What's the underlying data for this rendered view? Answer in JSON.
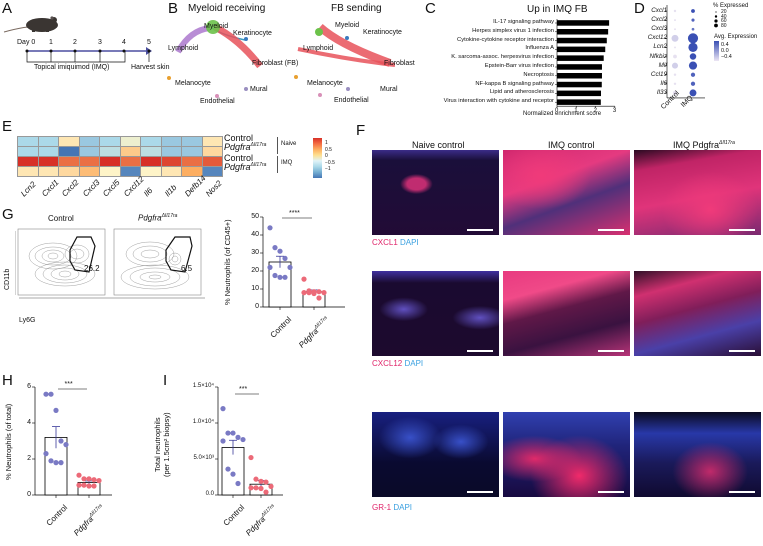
{
  "panels": {
    "A": {
      "label": "A",
      "day_labels": [
        "Day 0",
        "1",
        "2",
        "3",
        "4",
        "5"
      ],
      "treatment": "Topical imiquimod (IMQ)",
      "harvest": "Harvest skin",
      "arrow_color": "#4b4fa0"
    },
    "B": {
      "label": "B",
      "left_title": "Myeloid receiving",
      "right_title": "FB sending",
      "nodes_left": [
        "Myeloid",
        "Keratinocyte",
        "Lymphoid",
        "Fibroblast (FB)",
        "Melanocyte",
        "Mural",
        "Endothelial"
      ],
      "nodes_right": [
        "Myeloid",
        "Keratinocyte",
        "Lymphoid",
        "Fibroblast",
        "Melanocyte",
        "Mural",
        "Endothelial"
      ],
      "colors": {
        "myeloid": "#6cc24a",
        "keratinocyte": "#3a7bbf",
        "lymphoid": "#b07fd0",
        "fibroblast": "#e8525a",
        "melanocyte": "#e8a030",
        "mural": "#9a8fc0",
        "endothelial": "#d890b8"
      }
    },
    "C": {
      "label": "C"
    },
    "D": {
      "label": "D",
      "legend_size_title": "% Expressed",
      "legend_sizes": [
        "20",
        "40",
        "60",
        "80"
      ],
      "legend_color_title": "Avg. Expression",
      "legend_colors": [
        "0.4",
        "0.0",
        "−0.4"
      ]
    },
    "E": {
      "label": "E",
      "row_labels": [
        "Control",
        "Pdgfra",
        "Control",
        "Pdgfra"
      ],
      "row_sup": "ΔIl17ra",
      "group_labels": [
        "Naive",
        "IMQ"
      ],
      "colorbar_ticks": [
        "1",
        "0.5",
        "0",
        "−0.5",
        "−1"
      ]
    },
    "F": {
      "label": "F",
      "col_titles": [
        "Naive control",
        "IMQ control",
        "IMQ Pdgfra"
      ],
      "col3_sup": "ΔIl17ra",
      "rows": [
        {
          "stain": "CXCL1",
          "counter": "DAPI"
        },
        {
          "stain": "CXCL12",
          "counter": "DAPI"
        },
        {
          "stain": "GR-1",
          "counter": "DAPI"
        }
      ],
      "stain_color": "#e0246a",
      "dapi_color": "#3aa0e0"
    },
    "G": {
      "label": "G",
      "flow_titles": [
        "Control",
        "Pdgfra"
      ],
      "flow_sup": "ΔIl17ra",
      "gate_values": [
        "26.2",
        "6.5"
      ],
      "x_axis": "Ly6G",
      "y_axis": "CD11b",
      "significance": "****"
    },
    "H": {
      "label": "H",
      "significance": "***"
    },
    "I": {
      "label": "I",
      "significance": "***"
    }
  },
  "chart_data": [
    {
      "id": "C",
      "type": "bar",
      "orientation": "horizontal",
      "title": "Up in IMQ FB",
      "xlabel": "Normalized enrichment score",
      "xlim": [
        0,
        3
      ],
      "xticks": [
        "0",
        "1",
        "2",
        "3"
      ],
      "categories": [
        "IL-17 signaling pathway",
        "Herpes simplex virus 1 infection",
        "Cytokine-cytokine receptor interaction",
        "Influenza A",
        "K. sarcoma-assoc. herpesvirus infection",
        "Epstein-Barr virus infection",
        "Necroptosis",
        "NF-kappa B signaling pathway",
        "Lipid and atherosclerosis",
        "Virus interaction with cytokine and receptor"
      ],
      "values": [
        2.7,
        2.65,
        2.58,
        2.5,
        2.42,
        2.33,
        2.33,
        2.32,
        2.28,
        2.27
      ]
    },
    {
      "id": "D",
      "type": "scatter",
      "subtype": "dotplot",
      "genes": [
        "Cxcl1",
        "Cxcl2",
        "Cxcl3",
        "Cxcl12",
        "Lcn2",
        "Nfkbiz",
        "Mif",
        "Ccl19",
        "Il6",
        "Il33"
      ],
      "groups": [
        "Control",
        "IMQ"
      ],
      "pct_expressed": {
        "Control": [
          5,
          3,
          3,
          40,
          3,
          12,
          30,
          5,
          5,
          15
        ],
        "IMQ": [
          12,
          8,
          6,
          85,
          70,
          35,
          55,
          15,
          15,
          40
        ]
      },
      "avg_expression": {
        "Control": [
          -0.4,
          -0.4,
          -0.4,
          -0.3,
          -0.4,
          -0.4,
          -0.3,
          -0.4,
          -0.4,
          -0.4
        ],
        "IMQ": [
          0.4,
          0.3,
          0.2,
          0.4,
          0.4,
          0.4,
          0.4,
          0.3,
          0.3,
          0.4
        ]
      }
    },
    {
      "id": "E",
      "type": "heatmap",
      "columns": [
        "Lcn2",
        "Cxcl1",
        "Cxcl2",
        "Cxcl3",
        "Cxcl5",
        "Cxcl12",
        "Il6",
        "Il1b",
        "Defb14",
        "Nos2"
      ],
      "rows": [
        "Naive Control",
        "Naive PdgfraΔIl17ra",
        "IMQ Control",
        "IMQ PdgfraΔIl17ra"
      ],
      "values": [
        [
          -0.5,
          -0.5,
          0.1,
          -0.6,
          -0.5,
          -0.1,
          -0.5,
          -0.6,
          -0.6,
          0.1
        ],
        [
          -0.5,
          -0.5,
          -1.1,
          -0.6,
          -0.4,
          0.3,
          -0.4,
          -0.6,
          -0.6,
          0.2
        ],
        [
          1.1,
          1.1,
          0.8,
          0.8,
          1.1,
          0.8,
          1.1,
          1.0,
          0.8,
          0.9
        ],
        [
          0.1,
          0.1,
          0.2,
          0.4,
          0.0,
          -1.0,
          0.0,
          0.1,
          0.5,
          -1.0
        ]
      ],
      "colorbar": {
        "min": -1,
        "max": 1
      }
    },
    {
      "id": "G",
      "type": "bar",
      "ylabel": "% Neutrophils (of CD45+)",
      "ylim": [
        0,
        50
      ],
      "yticks": [
        "0",
        "10",
        "20",
        "30",
        "40",
        "50"
      ],
      "categories": [
        "Control",
        "PdgfraΔIl17ra"
      ],
      "values": [
        25,
        8.5
      ],
      "sem": [
        3.2,
        1.0
      ],
      "points": {
        "Control": [
          44,
          33,
          31,
          27,
          22,
          22,
          17.5,
          16.5,
          16.5
        ],
        "PdgfraΔIl17ra": [
          15.5,
          9,
          8.5,
          8.5,
          8,
          8,
          8,
          7.5,
          5
        ]
      },
      "significance": "****"
    },
    {
      "id": "H",
      "type": "bar",
      "ylabel": "% Neutrophils (of total)",
      "ylim": [
        0,
        6
      ],
      "yticks": [
        "0",
        "2",
        "4",
        "6"
      ],
      "categories": [
        "Control",
        "PdgfraΔIl17ra"
      ],
      "values": [
        3.2,
        0.7
      ],
      "sem": [
        0.6,
        0.08
      ],
      "points": {
        "Control": [
          5.6,
          5.6,
          4.7,
          3.0,
          2.8,
          2.3,
          1.9,
          1.8,
          1.8
        ],
        "PdgfraΔIl17ra": [
          1.1,
          0.9,
          0.9,
          0.85,
          0.8,
          0.55,
          0.55,
          0.5,
          0.5
        ]
      },
      "significance": "***"
    },
    {
      "id": "I",
      "type": "bar",
      "ylabel": "Total neutrophils (per 1.5cm² biopsy)",
      "ylim": [
        0,
        15000
      ],
      "yticks": [
        "0.0",
        "5.0×10³",
        "1.0×10⁴",
        "1.5×10⁴"
      ],
      "categories": [
        "Control",
        "PdgfraΔIl17ra"
      ],
      "values": [
        6600,
        1500
      ],
      "sem": [
        1000,
        500
      ],
      "points": {
        "Control": [
          12000,
          8600,
          8600,
          8000,
          7700,
          7500,
          3600,
          2900,
          1600
        ],
        "PdgfraΔIl17ra": [
          5200,
          2200,
          1900,
          1800,
          1200,
          1000,
          1000,
          900,
          400
        ]
      },
      "significance": "***"
    }
  ]
}
